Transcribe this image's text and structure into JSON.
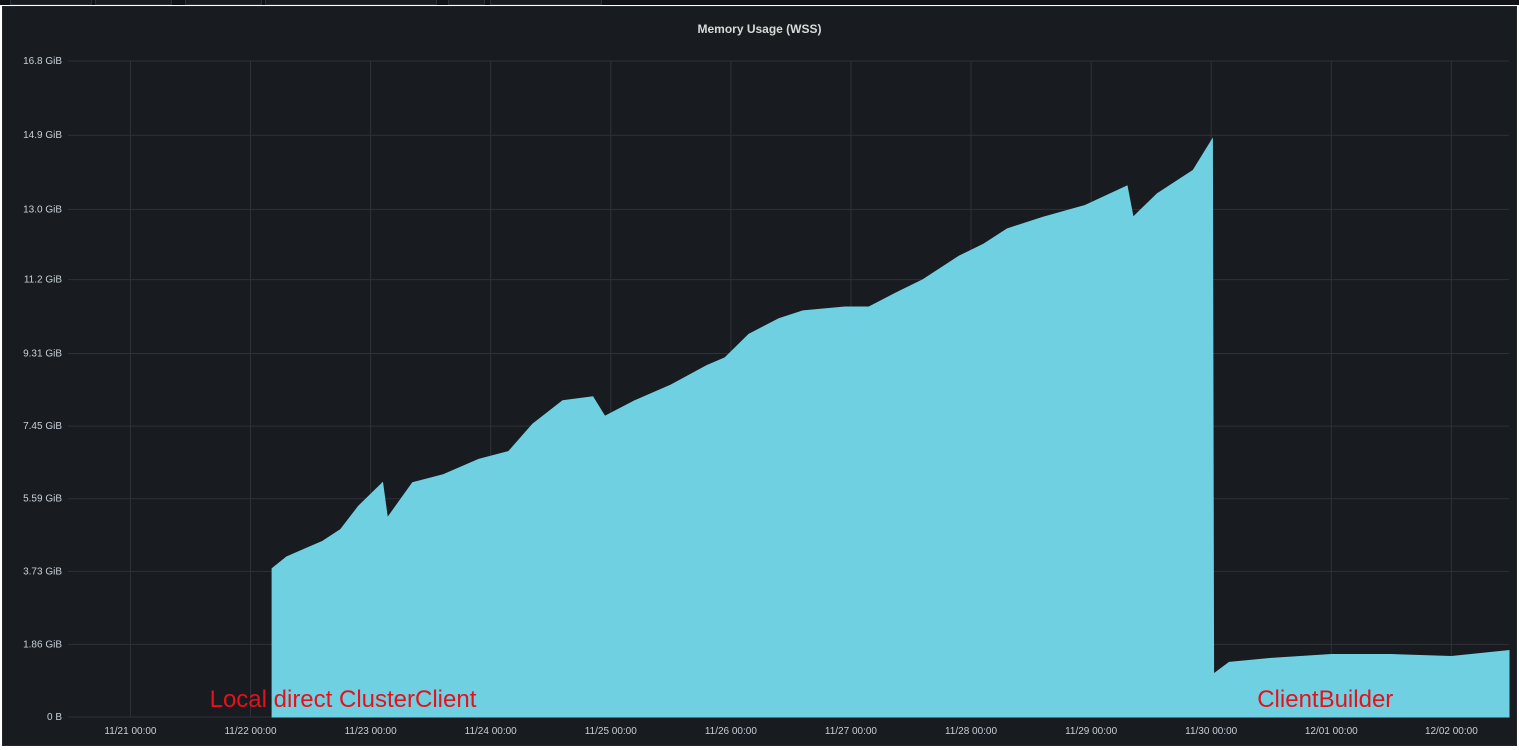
{
  "panel": {
    "title": "Memory Usage (WSS)"
  },
  "chart_data": {
    "type": "area",
    "title": "Memory Usage (WSS)",
    "unit": "GiB",
    "ylim": [
      0,
      16.8
    ],
    "y_ticks": [
      {
        "label": "0 B",
        "value": 0
      },
      {
        "label": "1.86 GiB",
        "value": 1.86
      },
      {
        "label": "3.73 GiB",
        "value": 3.73
      },
      {
        "label": "5.59 GiB",
        "value": 5.59
      },
      {
        "label": "7.45 GiB",
        "value": 7.45
      },
      {
        "label": "9.31 GiB",
        "value": 9.31
      },
      {
        "label": "11.2 GiB",
        "value": 11.2
      },
      {
        "label": "13.0 GiB",
        "value": 13.0
      },
      {
        "label": "14.9 GiB",
        "value": 14.9
      },
      {
        "label": "16.8 GiB",
        "value": 16.8
      }
    ],
    "x_ticks": [
      {
        "label": "11/21 00:00",
        "day": 0
      },
      {
        "label": "11/22 00:00",
        "day": 1
      },
      {
        "label": "11/23 00:00",
        "day": 2
      },
      {
        "label": "11/24 00:00",
        "day": 3
      },
      {
        "label": "11/25 00:00",
        "day": 4
      },
      {
        "label": "11/26 00:00",
        "day": 5
      },
      {
        "label": "11/27 00:00",
        "day": 6
      },
      {
        "label": "11/28 00:00",
        "day": 7
      },
      {
        "label": "11/29 00:00",
        "day": 8
      },
      {
        "label": "11/30 00:00",
        "day": 9
      },
      {
        "label": "12/01 00:00",
        "day": 10
      },
      {
        "label": "12/02 00:00",
        "day": 11
      }
    ],
    "xlim_days": [
      -0.52,
      11.48
    ],
    "grid": true,
    "series": [
      {
        "color": "#6fd0e1",
        "points": [
          [
            1.18,
            0
          ],
          [
            1.18,
            3.8
          ],
          [
            1.3,
            4.1
          ],
          [
            1.45,
            4.3
          ],
          [
            1.6,
            4.5
          ],
          [
            1.75,
            4.8
          ],
          [
            1.9,
            5.4
          ],
          [
            2.1,
            6.0
          ],
          [
            2.14,
            5.1
          ],
          [
            2.35,
            6.0
          ],
          [
            2.6,
            6.2
          ],
          [
            2.9,
            6.6
          ],
          [
            3.15,
            6.8
          ],
          [
            3.35,
            7.5
          ],
          [
            3.6,
            8.1
          ],
          [
            3.85,
            8.2
          ],
          [
            3.95,
            7.7
          ],
          [
            4.2,
            8.1
          ],
          [
            4.5,
            8.5
          ],
          [
            4.8,
            9.0
          ],
          [
            4.95,
            9.2
          ],
          [
            5.15,
            9.8
          ],
          [
            5.4,
            10.2
          ],
          [
            5.6,
            10.4
          ],
          [
            5.95,
            10.5
          ],
          [
            6.15,
            10.5
          ],
          [
            6.4,
            10.9
          ],
          [
            6.6,
            11.2
          ],
          [
            6.9,
            11.8
          ],
          [
            7.1,
            12.1
          ],
          [
            7.3,
            12.5
          ],
          [
            7.6,
            12.8
          ],
          [
            7.95,
            13.1
          ],
          [
            8.3,
            13.6
          ],
          [
            8.35,
            12.8
          ],
          [
            8.55,
            13.4
          ],
          [
            8.85,
            14.0
          ],
          [
            8.95,
            14.5
          ],
          [
            9.01,
            14.8
          ],
          [
            9.02,
            1.1
          ],
          [
            9.15,
            1.4
          ],
          [
            9.5,
            1.5
          ],
          [
            10.0,
            1.6
          ],
          [
            10.5,
            1.6
          ],
          [
            11.0,
            1.55
          ],
          [
            11.48,
            1.7
          ],
          [
            11.48,
            0
          ]
        ]
      }
    ],
    "annotations": [
      {
        "text": "Local direct ClusterClient",
        "day": 1.77,
        "value": 0.26
      },
      {
        "text": "ClientBuilder",
        "day": 9.95,
        "value": 0.26
      }
    ]
  }
}
